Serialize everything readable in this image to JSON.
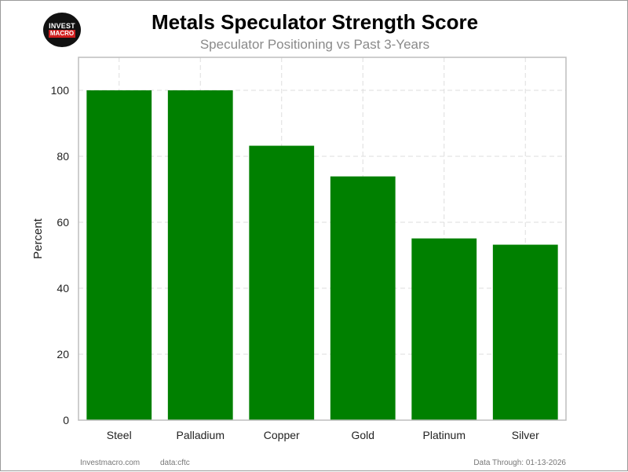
{
  "logo": {
    "top": "INVEST",
    "bottom": "MACRO"
  },
  "footer": {
    "site": "Investmacro.com",
    "source": "data:cftc",
    "date": "Data Through: 01-13-2026"
  },
  "colors": {
    "bar": "#008000",
    "grid": "#dddddd",
    "axis": "#bdbdbd"
  },
  "chart_data": {
    "type": "bar",
    "title": "Metals Speculator Strength Score",
    "subtitle": "Speculator Positioning vs Past 3-Years",
    "xlabel": "",
    "ylabel": "Percent",
    "categories": [
      "Steel",
      "Palladium",
      "Copper",
      "Gold",
      "Platinum",
      "Silver"
    ],
    "values": [
      100,
      100,
      83.2,
      73.9,
      55.1,
      53.2
    ],
    "ylim": [
      0,
      110
    ],
    "yticks": [
      0,
      20,
      40,
      60,
      80,
      100
    ],
    "grid": true
  }
}
